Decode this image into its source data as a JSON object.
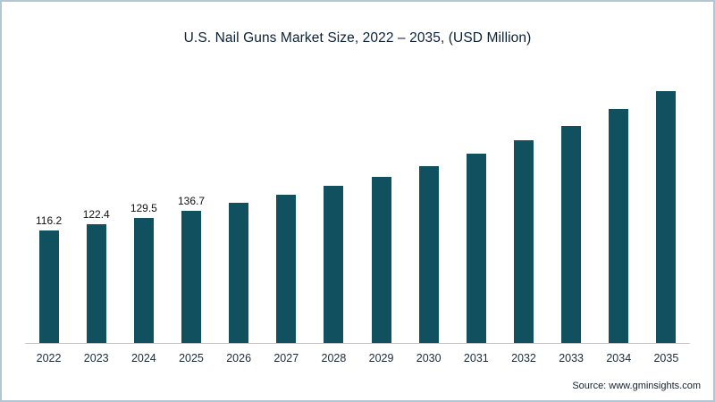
{
  "frame": {
    "border_color": "#b3c7d3",
    "background": "#ffffff"
  },
  "chart_data": {
    "type": "bar",
    "title": "U.S. Nail Guns Market Size, 2022 – 2035, (USD Million)",
    "xlabel": "",
    "ylabel": "",
    "categories": [
      "2022",
      "2023",
      "2024",
      "2025",
      "2026",
      "2027",
      "2028",
      "2029",
      "2030",
      "2031",
      "2032",
      "2033",
      "2034",
      "2035"
    ],
    "values": [
      116.2,
      122.4,
      129.5,
      136.7,
      144.6,
      153.1,
      162.2,
      172.0,
      182.9,
      195.6,
      209.5,
      224.8,
      241.9,
      260.3
    ],
    "data_labels": [
      "116.2",
      "122.4",
      "129.5",
      "136.7",
      "",
      "",
      "",
      "",
      "",
      "",
      "",
      "",
      "",
      ""
    ],
    "bar_color": "#11505f",
    "ylim": [
      0,
      290
    ],
    "grid": false,
    "legend_position": "none"
  },
  "source": {
    "label": "Source: www.gminsights.com"
  }
}
